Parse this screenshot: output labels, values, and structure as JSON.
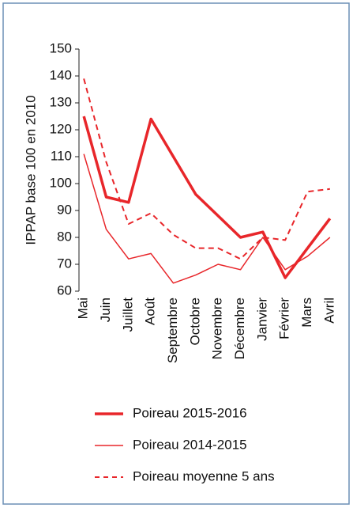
{
  "chart_data": {
    "type": "line",
    "y_label": "IPPAP base 100 en 2010",
    "categories": [
      "Mai",
      "Juin",
      "Juillet",
      "Août",
      "Septembre",
      "Octobre",
      "Novembre",
      "Décembre",
      "Janvier",
      "Février",
      "Mars",
      "Avril"
    ],
    "series": [
      {
        "name": "Poireau 2015-2016",
        "color": "#e8262a",
        "width": 3.5,
        "dashed": false,
        "values": [
          125,
          95,
          93,
          124,
          110,
          96,
          88,
          80,
          82,
          65,
          76,
          87
        ]
      },
      {
        "name": "Poireau 2014-2015",
        "color": "#e8262a",
        "width": 1.5,
        "dashed": false,
        "values": [
          111,
          83,
          72,
          74,
          63,
          66,
          70,
          68,
          80,
          68,
          73,
          80
        ]
      },
      {
        "name": "Poireau moyenne 5 ans",
        "color": "#e8262a",
        "width": 2,
        "dashed": true,
        "values": [
          139,
          108,
          85,
          89,
          81,
          76,
          76,
          72,
          80,
          79,
          97,
          98
        ]
      }
    ],
    "ylim": [
      60,
      150
    ],
    "yticks": [
      60,
      70,
      80,
      90,
      100,
      110,
      120,
      130,
      140,
      150
    ]
  }
}
